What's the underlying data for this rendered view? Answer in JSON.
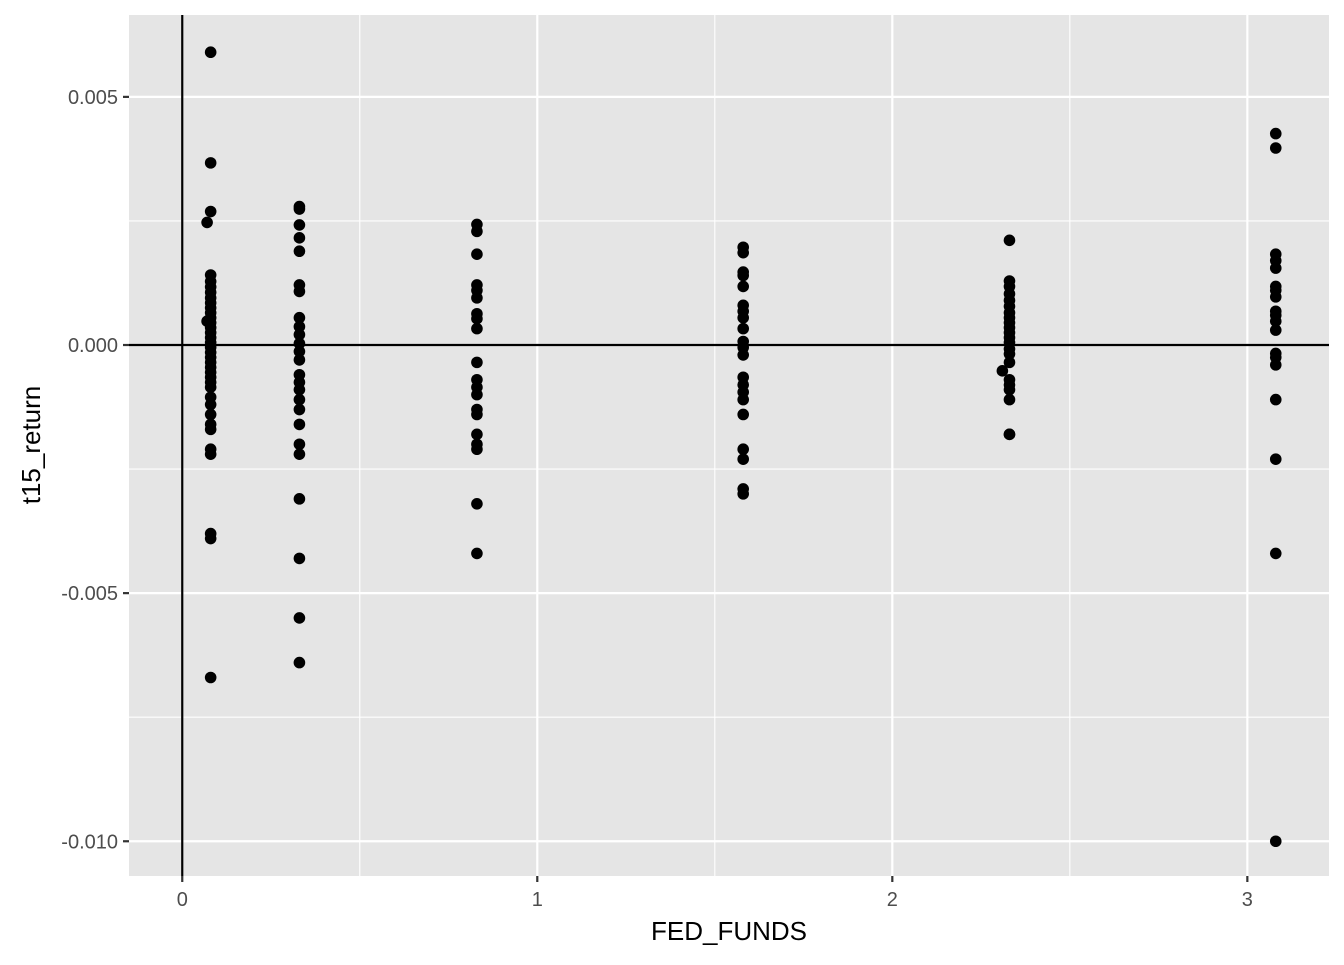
{
  "chart_data": {
    "type": "scatter",
    "xlabel": "FED_FUNDS",
    "ylabel": "t15_return",
    "xlim": [
      -0.15,
      3.23
    ],
    "ylim": [
      -0.0107,
      0.00665
    ],
    "x_ticks": [
      {
        "value": 0,
        "label": "0"
      },
      {
        "value": 1,
        "label": "1"
      },
      {
        "value": 2,
        "label": "2"
      },
      {
        "value": 3,
        "label": "3"
      }
    ],
    "y_ticks": [
      {
        "value": 0.005,
        "label": "0.005"
      },
      {
        "value": 0,
        "label": "0.000"
      },
      {
        "value": -0.005,
        "label": "-0.005"
      },
      {
        "value": -0.01,
        "label": "-0.010"
      }
    ],
    "x_minor_breaks": [
      0.5,
      1.5,
      2.5
    ],
    "y_minor_breaks": [
      0.0075,
      0.0025,
      -0.0025,
      -0.0075
    ],
    "reference_lines": {
      "vline_x": 0,
      "hline_y": 0
    },
    "grid": true,
    "panel_background": "#e5e5e5",
    "grid_color": "#ffffff",
    "point_color": "#000000",
    "series": [
      {
        "groups": [
          {
            "x": 0.08,
            "y": [
              0.0059,
              0.00367,
              0.00269,
              0.00141,
              0.00128,
              0.00117,
              0.00106,
              0.00095,
              0.00085,
              0.00075,
              0.00065,
              0.00055,
              0.00045,
              0.00035,
              0.00025,
              0.00015,
              5e-05,
              -5e-05,
              -0.00015,
              -0.00025,
              -0.00035,
              -0.00045,
              -0.00055,
              -0.00065,
              -0.00075,
              -0.00085,
              -0.00105,
              -0.0012,
              -0.0014,
              -0.0016,
              -0.0017,
              -0.0021,
              -0.0022,
              -0.0038,
              -0.0039,
              -0.0067
            ]
          },
          {
            "x": 0.07,
            "y": [
              0.00247,
              0.00048
            ]
          },
          {
            "x": 0.33,
            "y": [
              0.00279,
              0.00274,
              0.00242,
              0.00216,
              0.00189,
              0.00121,
              0.00108,
              0.00055,
              0.00037,
              0.00021,
              3e-05,
              -0.00013,
              -0.0003,
              -0.0006,
              -0.00075,
              -0.0009,
              -0.0011,
              -0.0013,
              -0.0016,
              -0.002,
              -0.0022,
              -0.0031,
              -0.0043,
              -0.0055,
              -0.0064
            ]
          },
          {
            "x": 0.83,
            "y": [
              0.00243,
              0.00229,
              0.00183,
              0.00121,
              0.0011,
              0.00095,
              0.00063,
              0.00053,
              0.00033,
              -0.00035,
              -0.0007,
              -0.00085,
              -0.001,
              -0.0013,
              -0.0014,
              -0.0018,
              -0.002,
              -0.0021,
              -0.0032,
              -0.0042
            ]
          },
          {
            "x": 1.58,
            "y": [
              0.00197,
              0.00186,
              0.00147,
              0.0014,
              0.00118,
              0.0008,
              0.00068,
              0.00055,
              0.00033,
              7e-05,
              -5e-05,
              -0.0002,
              -0.00065,
              -0.0008,
              -0.00095,
              -0.0011,
              -0.0014,
              -0.0021,
              -0.0023,
              -0.0029,
              -0.003
            ]
          },
          {
            "x": 2.33,
            "y": [
              0.00211,
              0.00129,
              0.00118,
              0.00103,
              0.0009,
              0.00078,
              0.00065,
              0.00055,
              0.00045,
              0.00035,
              0.00025,
              0.00015,
              5e-05,
              -8e-05,
              -0.00018,
              -0.00035,
              -0.0007,
              -0.0008,
              -0.0009,
              -0.0011,
              -0.0018,
              -0.0018
            ]
          },
          {
            "x": 2.31,
            "y": [
              -0.00052
            ]
          },
          {
            "x": 3.08,
            "y": [
              0.00426,
              0.00397,
              0.00183,
              0.0017,
              0.00155,
              0.00118,
              0.0011,
              0.00097,
              0.00068,
              0.0006,
              0.00048,
              0.0003,
              -0.00017,
              -0.00025,
              -0.0004,
              -0.0011,
              -0.0023,
              -0.0042,
              -0.01
            ]
          }
        ]
      }
    ]
  }
}
